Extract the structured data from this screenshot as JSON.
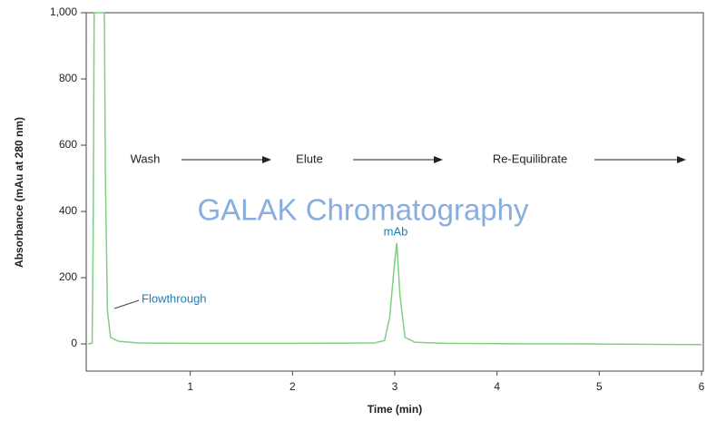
{
  "chart_data": {
    "type": "line",
    "x_label": "Time (min)",
    "y_label": "Absorbance (mAu at 280 nm)",
    "x": [
      0,
      0.04,
      0.05,
      0.06,
      0.16,
      0.17,
      0.19,
      0.22,
      0.3,
      0.5,
      1,
      2,
      2.8,
      2.9,
      2.95,
      3.0,
      3.02,
      3.05,
      3.1,
      3.2,
      3.5,
      4,
      5,
      6
    ],
    "series": [
      {
        "color": "#7fcf7f",
        "values": [
          0,
          2,
          300,
          1000,
          1000,
          500,
          100,
          20,
          8,
          3,
          2,
          2,
          3,
          10,
          80,
          250,
          305,
          150,
          20,
          5,
          2,
          1,
          0,
          -2
        ]
      }
    ],
    "xlim": [
      0,
      6
    ],
    "xticks": [
      1,
      2,
      3,
      4,
      5,
      6
    ],
    "ylim": [
      -82,
      1000
    ],
    "yticks": [
      0,
      200,
      400,
      600,
      800,
      {
        "value": 1000,
        "label": "1,000"
      }
    ],
    "phases": [
      "Wash",
      "Elute",
      "Re-Equilibrate"
    ],
    "peak_labels": [
      "Flowthrough",
      "mAb"
    ],
    "watermark": "GALAK Chromatography"
  }
}
